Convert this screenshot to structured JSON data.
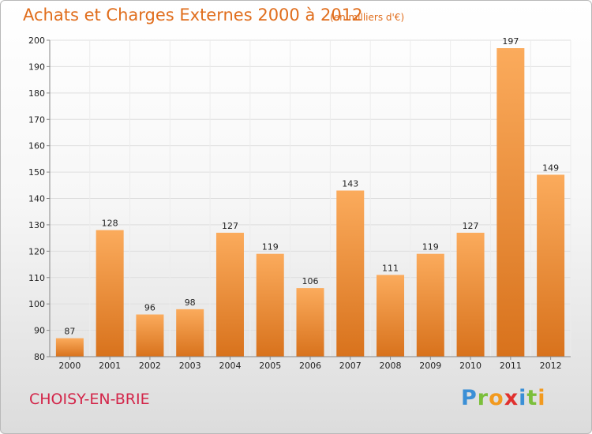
{
  "title": "Achats et Charges Externes 2000 à 2012",
  "unit": "(en milliers d'€)",
  "commune": "CHOISY-EN-BRIE",
  "logo": {
    "letters": [
      "P",
      "r",
      "o",
      "x",
      "i",
      "t",
      "i"
    ],
    "colors": [
      "#3a8fd6",
      "#7bbf3b",
      "#f29a1f",
      "#e0302e",
      "#3a8fd6",
      "#7bbf3b",
      "#f29a1f"
    ]
  },
  "colors": {
    "bar_light": "#fbab5c",
    "bar_dark": "#d8721c",
    "title": "#e06d1c",
    "commune": "#d3264a"
  },
  "chart_data": {
    "type": "bar",
    "categories": [
      "2000",
      "2001",
      "2002",
      "2003",
      "2004",
      "2005",
      "2006",
      "2007",
      "2008",
      "2009",
      "2010",
      "2011",
      "2012"
    ],
    "values": [
      87,
      128,
      96,
      98,
      127,
      119,
      106,
      143,
      111,
      119,
      127,
      197,
      149
    ],
    "ylim": [
      80,
      200
    ],
    "yticks": [
      80,
      90,
      100,
      110,
      120,
      130,
      140,
      150,
      160,
      170,
      180,
      190,
      200
    ],
    "grid": true
  }
}
